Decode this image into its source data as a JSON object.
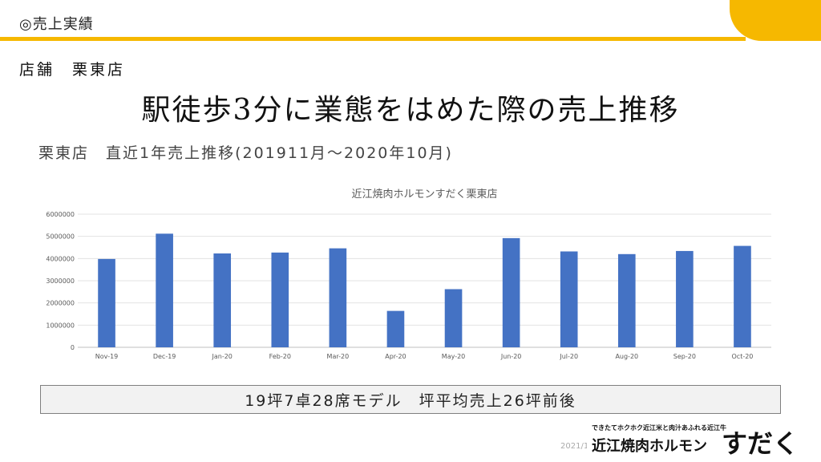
{
  "header": {
    "title": "◎売上実績"
  },
  "store_label": "店舗　栗東店",
  "headline": "駅徒歩3分に業態をはめた際の売上推移",
  "subtitle": "栗東店　直近1年売上推移(201911月～2020年10月)",
  "summary": "19坪7卓28席モデル　坪平均売上26坪前後",
  "footer": {
    "date_partial": "2021/1",
    "brand_tagline": "できたてホクホク近江米と肉汁あふれる近江牛",
    "brand_name": "近江焼肉ホルモン",
    "brand_mark": "すだく"
  },
  "colors": {
    "accent": "#F6B800",
    "bar": "#4472C4"
  },
  "chart_data": {
    "type": "bar",
    "title": "近江焼肉ホルモンすだく栗東店",
    "categories": [
      "Nov-19",
      "Dec-19",
      "Jan-20",
      "Feb-20",
      "Mar-20",
      "Apr-20",
      "May-20",
      "Jun-20",
      "Jul-20",
      "Aug-20",
      "Sep-20",
      "Oct-20"
    ],
    "values": [
      3980000,
      5120000,
      4230000,
      4270000,
      4460000,
      1640000,
      2620000,
      4920000,
      4320000,
      4200000,
      4340000,
      4570000
    ],
    "ylim": [
      0,
      6000000
    ],
    "yticks": [
      "0",
      "1000000",
      "2000000",
      "3000000",
      "4000000",
      "5000000",
      "6000000"
    ],
    "grid": true,
    "legend": "none"
  }
}
